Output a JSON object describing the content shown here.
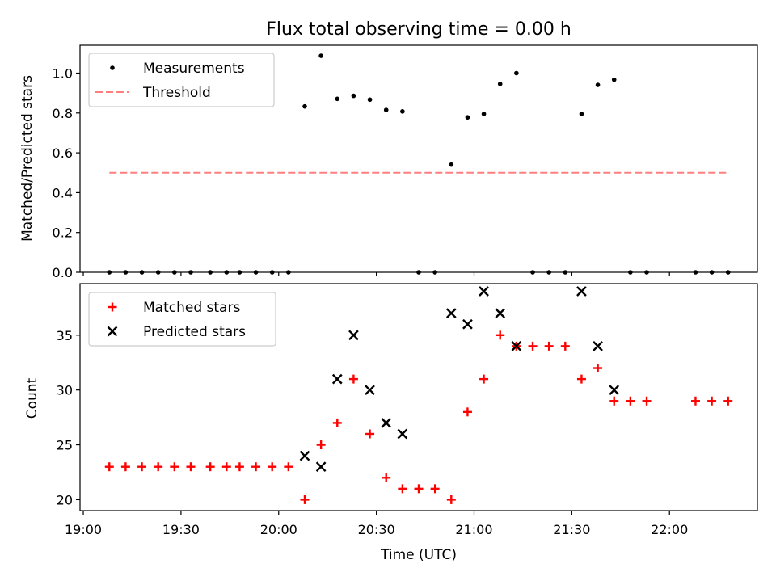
{
  "chart_data": [
    {
      "type": "scatter",
      "title": "Flux total observing time = 0.00 h",
      "xlabel": "",
      "ylabel": "Matched/Predicted stars",
      "ylim": [
        0,
        1.14
      ],
      "yticks": [
        0.0,
        0.2,
        0.4,
        0.6,
        0.8,
        1.0
      ],
      "ytick_labels": [
        "0.0",
        "0.2",
        "0.4",
        "0.6",
        "0.8",
        "1.0"
      ],
      "legend_position": "top-left",
      "series": [
        {
          "name": "Measurements",
          "marker": "dot",
          "color": "#000000",
          "x": [
            "19:08",
            "19:13",
            "19:18",
            "19:23",
            "19:28",
            "19:33",
            "19:39",
            "19:44",
            "19:48",
            "19:53",
            "19:58",
            "20:03",
            "20:08",
            "20:13",
            "20:18",
            "20:23",
            "20:28",
            "20:33",
            "20:38",
            "20:43",
            "20:48",
            "20:53",
            "20:58",
            "21:03",
            "21:08",
            "21:13",
            "21:18",
            "21:23",
            "21:28",
            "21:33",
            "21:38",
            "21:43",
            "21:48",
            "21:53",
            "22:08",
            "22:13",
            "22:18"
          ],
          "y": [
            0,
            0,
            0,
            0,
            0,
            0,
            0,
            0,
            0,
            0,
            0,
            0,
            0.833,
            1.087,
            0.871,
            0.886,
            0.867,
            0.815,
            0.808,
            0,
            0,
            0.541,
            0.778,
            0.795,
            0.946,
            1.0,
            0,
            0,
            0,
            0.795,
            0.941,
            0.967,
            0,
            0,
            0,
            0,
            0
          ]
        },
        {
          "name": "Threshold",
          "style": "dashed",
          "color": "#ff7f7f",
          "x": [
            "19:08",
            "22:18"
          ],
          "y": [
            0.5,
            0.5
          ]
        }
      ]
    },
    {
      "type": "scatter",
      "title": "",
      "xlabel": "Time (UTC)",
      "ylabel": "Count",
      "ylim": [
        19,
        39.7
      ],
      "yticks": [
        20,
        25,
        30,
        35
      ],
      "ytick_labels": [
        "20",
        "25",
        "30",
        "35"
      ],
      "xlim": [
        "18:59",
        "22:27"
      ],
      "xticks": [
        "19:00",
        "19:30",
        "20:00",
        "20:30",
        "21:00",
        "21:30",
        "22:00"
      ],
      "xtick_labels": [
        "19:00",
        "19:30",
        "20:00",
        "20:30",
        "21:00",
        "21:30",
        "22:00"
      ],
      "legend_position": "top-left",
      "series": [
        {
          "name": "Matched stars",
          "marker": "plus",
          "color": "#ff0000",
          "x": [
            "19:08",
            "19:13",
            "19:18",
            "19:23",
            "19:28",
            "19:33",
            "19:39",
            "19:44",
            "19:48",
            "19:53",
            "19:58",
            "20:03",
            "20:08",
            "20:13",
            "20:18",
            "20:23",
            "20:28",
            "20:33",
            "20:38",
            "20:43",
            "20:48",
            "20:53",
            "20:58",
            "21:03",
            "21:08",
            "21:13",
            "21:18",
            "21:23",
            "21:28",
            "21:33",
            "21:38",
            "21:43",
            "21:48",
            "21:53",
            "22:08",
            "22:13",
            "22:18"
          ],
          "y": [
            23,
            23,
            23,
            23,
            23,
            23,
            23,
            23,
            23,
            23,
            23,
            23,
            20,
            25,
            27,
            31,
            26,
            22,
            21,
            21,
            21,
            20,
            28,
            31,
            35,
            34,
            34,
            34,
            34,
            31,
            32,
            29,
            29,
            29,
            29,
            29,
            29
          ]
        },
        {
          "name": "Predicted stars",
          "marker": "x",
          "color": "#000000",
          "x": [
            "20:08",
            "20:13",
            "20:18",
            "20:23",
            "20:28",
            "20:33",
            "20:38",
            "20:53",
            "20:58",
            "21:03",
            "21:08",
            "21:13",
            "21:33",
            "21:38",
            "21:43"
          ],
          "y": [
            24,
            23,
            31,
            35,
            30,
            27,
            26,
            37,
            36,
            39,
            37,
            34,
            39,
            34,
            30
          ]
        }
      ]
    }
  ]
}
